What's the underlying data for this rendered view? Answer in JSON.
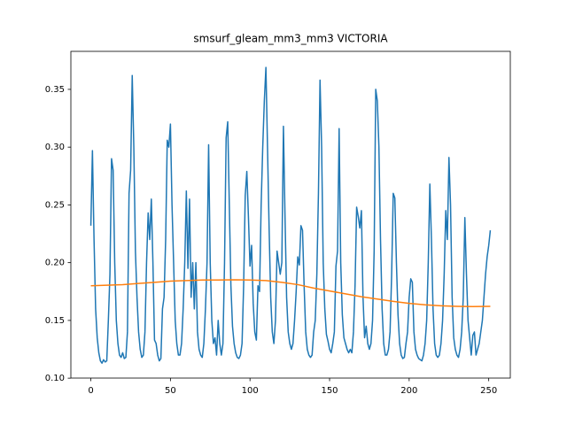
{
  "chart_data": {
    "type": "line",
    "title": "smsurf_gleam_mm3_mm3 VICTORIA",
    "xlim": [
      -12.55,
      263.55
    ],
    "ylim": [
      0.1001,
      0.3829
    ],
    "xticks": [
      0,
      50,
      100,
      150,
      200,
      250
    ],
    "yticks": [
      {
        "value": 0.1,
        "label": "0.10"
      },
      0.15,
      {
        "value": 0.2,
        "label": "0.20"
      },
      0.25,
      {
        "value": 0.3,
        "label": "0.30"
      },
      0.35
    ],
    "grid": false,
    "series": [
      {
        "color": "#1f77b4",
        "values": [
          0.232,
          0.297,
          0.22,
          0.16,
          0.135,
          0.122,
          0.115,
          0.113,
          0.116,
          0.114,
          0.115,
          0.15,
          0.19,
          0.29,
          0.28,
          0.2,
          0.15,
          0.13,
          0.12,
          0.118,
          0.122,
          0.117,
          0.118,
          0.14,
          0.26,
          0.28,
          0.362,
          0.3,
          0.21,
          0.17,
          0.14,
          0.125,
          0.118,
          0.12,
          0.14,
          0.2,
          0.243,
          0.22,
          0.255,
          0.2,
          0.133,
          0.13,
          0.12,
          0.115,
          0.117,
          0.16,
          0.17,
          0.22,
          0.306,
          0.3,
          0.32,
          0.25,
          0.2,
          0.15,
          0.13,
          0.12,
          0.12,
          0.13,
          0.16,
          0.2,
          0.262,
          0.195,
          0.255,
          0.17,
          0.2,
          0.16,
          0.2,
          0.14,
          0.125,
          0.12,
          0.118,
          0.13,
          0.16,
          0.2,
          0.302,
          0.2,
          0.15,
          0.13,
          0.135,
          0.12,
          0.15,
          0.13,
          0.12,
          0.13,
          0.2,
          0.308,
          0.322,
          0.25,
          0.18,
          0.145,
          0.13,
          0.122,
          0.118,
          0.117,
          0.12,
          0.13,
          0.18,
          0.258,
          0.279,
          0.24,
          0.197,
          0.215,
          0.165,
          0.14,
          0.133,
          0.18,
          0.175,
          0.25,
          0.3,
          0.34,
          0.369,
          0.3,
          0.23,
          0.17,
          0.14,
          0.13,
          0.15,
          0.21,
          0.2,
          0.19,
          0.2,
          0.318,
          0.24,
          0.17,
          0.14,
          0.13,
          0.125,
          0.13,
          0.15,
          0.175,
          0.205,
          0.198,
          0.232,
          0.228,
          0.18,
          0.14,
          0.125,
          0.12,
          0.118,
          0.12,
          0.14,
          0.15,
          0.19,
          0.26,
          0.358,
          0.3,
          0.2,
          0.16,
          0.138,
          0.132,
          0.125,
          0.122,
          0.13,
          0.14,
          0.197,
          0.21,
          0.316,
          0.2,
          0.155,
          0.135,
          0.13,
          0.125,
          0.122,
          0.125,
          0.122,
          0.14,
          0.18,
          0.248,
          0.24,
          0.23,
          0.245,
          0.17,
          0.135,
          0.145,
          0.13,
          0.125,
          0.13,
          0.15,
          0.21,
          0.35,
          0.34,
          0.3,
          0.22,
          0.16,
          0.13,
          0.12,
          0.12,
          0.125,
          0.14,
          0.19,
          0.26,
          0.256,
          0.2,
          0.155,
          0.13,
          0.12,
          0.117,
          0.118,
          0.13,
          0.14,
          0.17,
          0.186,
          0.183,
          0.14,
          0.125,
          0.12,
          0.117,
          0.116,
          0.115,
          0.12,
          0.13,
          0.15,
          0.2,
          0.268,
          0.22,
          0.16,
          0.13,
          0.12,
          0.118,
          0.12,
          0.13,
          0.15,
          0.19,
          0.245,
          0.22,
          0.291,
          0.25,
          0.17,
          0.135,
          0.125,
          0.12,
          0.118,
          0.125,
          0.14,
          0.17,
          0.239,
          0.19,
          0.15,
          0.135,
          0.12,
          0.137,
          0.14,
          0.12,
          0.125,
          0.13,
          0.14,
          0.15,
          0.17,
          0.19,
          0.205,
          0.215,
          0.228
        ]
      },
      {
        "color": "#ff7f0e",
        "x": [
          0,
          10,
          20,
          30,
          40,
          50,
          60,
          70,
          80,
          90,
          100,
          110,
          120,
          130,
          140,
          150,
          160,
          170,
          180,
          190,
          200,
          210,
          220,
          230,
          240,
          251
        ],
        "values": [
          0.18,
          0.1805,
          0.181,
          0.182,
          0.183,
          0.184,
          0.1845,
          0.185,
          0.185,
          0.1852,
          0.185,
          0.1845,
          0.183,
          0.181,
          0.178,
          0.1755,
          0.173,
          0.1705,
          0.1685,
          0.1665,
          0.1648,
          0.1635,
          0.1627,
          0.1622,
          0.162,
          0.1622
        ]
      }
    ]
  }
}
